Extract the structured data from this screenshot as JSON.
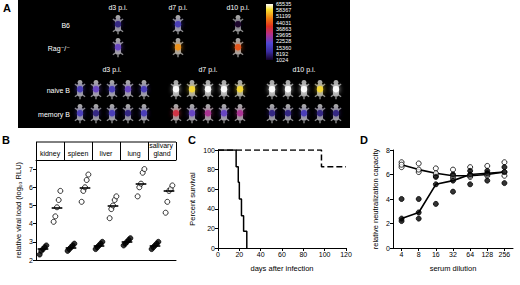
{
  "imaging": {
    "panel": "A",
    "top": {
      "columns": [
        "d3 p.i.",
        "d7 p.i.",
        "d10 p.i."
      ],
      "rows": [
        {
          "label": "B6",
          "signal": [
            8192,
            15360,
            1024
          ]
        },
        {
          "label": "Rag⁻/⁻",
          "signal": [
            22528,
            51199,
            44031
          ]
        }
      ]
    },
    "bottom": {
      "columns": [
        "d3 p.i.",
        "d7 p.i.",
        "d10 p.i."
      ],
      "rows": [
        {
          "label": "naive B",
          "signal": [
            [
              15360,
              22528,
              15360,
              22528,
              15360
            ],
            [
              65535,
              58367,
              65535,
              65535,
              58367
            ],
            [
              65535,
              65535,
              65535,
              58367,
              65535
            ]
          ]
        },
        {
          "label": "memory B",
          "signal": [
            [
              15360,
              8192,
              15360,
              8192,
              15360
            ],
            [
              36863,
              22528,
              29695,
              22528,
              29695
            ],
            [
              8192,
              8192,
              15360,
              8192,
              8192
            ]
          ]
        }
      ]
    },
    "colorbar": {
      "range": [
        1024,
        65535
      ],
      "ticks": [
        65535,
        58367,
        51199,
        44031,
        36863,
        29695,
        22528,
        15360,
        8192,
        1024
      ]
    }
  },
  "chart_data": [
    {
      "panel": "B",
      "type": "dot",
      "y_label": "relative viral load (log₁₀ RLU)",
      "categories": [
        "kidney",
        "spleen",
        "liver",
        "lung",
        "salivary gland"
      ],
      "ylim": [
        2,
        7.5
      ],
      "yticks": [
        2,
        3,
        4,
        5,
        6,
        7
      ],
      "grid": false,
      "series": [
        {
          "color": "#000000",
          "marker": "circle",
          "values": [
            [
              2.3,
              2.5,
              2.6,
              2.7,
              2.8
            ],
            [
              2.5,
              2.6,
              2.7,
              2.8,
              2.9
            ],
            [
              2.6,
              2.7,
              2.8,
              2.9,
              3.0
            ],
            [
              2.8,
              2.9,
              3.0,
              3.1,
              3.2
            ],
            [
              2.6,
              2.7,
              2.8,
              2.9,
              3.0
            ]
          ],
          "medians": [
            2.6,
            2.7,
            2.8,
            3.0,
            2.8
          ]
        },
        {
          "color": "#000000",
          "marker": "emptyCircle",
          "values": [
            [
              4.1,
              4.4,
              4.9,
              5.3,
              5.8
            ],
            [
              5.2,
              5.8,
              6.0,
              6.4,
              6.7
            ],
            [
              4.3,
              4.8,
              5.0,
              5.3,
              5.5
            ],
            [
              5.5,
              6.0,
              6.2,
              6.8,
              7.0
            ],
            [
              4.6,
              5.2,
              5.8,
              5.9,
              6.1
            ]
          ],
          "medians": [
            4.9,
            6.0,
            5.0,
            6.2,
            5.8
          ]
        }
      ]
    },
    {
      "panel": "C",
      "type": "step",
      "x_label": "days after infection",
      "y_label": "Percent survival",
      "xlim": [
        0,
        120
      ],
      "xticks": [
        0,
        20,
        40,
        60,
        80,
        100,
        120
      ],
      "ylim": [
        0,
        100
      ],
      "yticks": [
        0,
        20,
        40,
        60,
        80,
        100
      ],
      "grid": false,
      "series": [
        {
          "color": "#000000",
          "line_style": "solid",
          "x": [
            0,
            17,
            19,
            20,
            22,
            24,
            27
          ],
          "values": [
            100,
            83,
            67,
            50,
            33,
            17,
            0
          ]
        },
        {
          "color": "#000000",
          "line_style": "dashed",
          "x": [
            0,
            97,
            120
          ],
          "values": [
            100,
            83,
            83
          ]
        }
      ]
    },
    {
      "panel": "D",
      "type": "line",
      "x_label": "serum dilution",
      "y_label": "relative neutralization capacity",
      "categories": [
        "4",
        "8",
        "16",
        "32",
        "64",
        "128",
        "256"
      ],
      "ylim": [
        0,
        8
      ],
      "yticks": [
        0,
        2,
        4,
        6,
        8
      ],
      "grid": false,
      "series": [
        {
          "color": "#000000",
          "marker": "emptyCircle",
          "values": [
            [
              7.0,
              6.6,
              6.8
            ],
            [
              6.9,
              6.2,
              6.4
            ],
            [
              6.5,
              5.9,
              6.1
            ],
            [
              6.4,
              5.7,
              5.9
            ],
            [
              6.6,
              5.8,
              5.9
            ],
            [
              6.7,
              5.9,
              6.0
            ],
            [
              7.0,
              6.2,
              5.9
            ]
          ],
          "medians": [
            6.8,
            6.4,
            6.1,
            5.9,
            5.9,
            6.0,
            6.2
          ]
        },
        {
          "color": "#000000",
          "marker": "circle",
          "values": [
            [
              2.2,
              2.4,
              4.0
            ],
            [
              2.4,
              2.9,
              4.0
            ],
            [
              3.6,
              5.2,
              5.8
            ],
            [
              4.6,
              5.5,
              6.0
            ],
            [
              5.2,
              6.0,
              6.3
            ],
            [
              5.5,
              6.1,
              6.3
            ],
            [
              5.3,
              6.2,
              6.6
            ]
          ],
          "medians": [
            2.4,
            2.9,
            5.2,
            5.5,
            6.0,
            6.1,
            6.2
          ]
        }
      ]
    }
  ]
}
